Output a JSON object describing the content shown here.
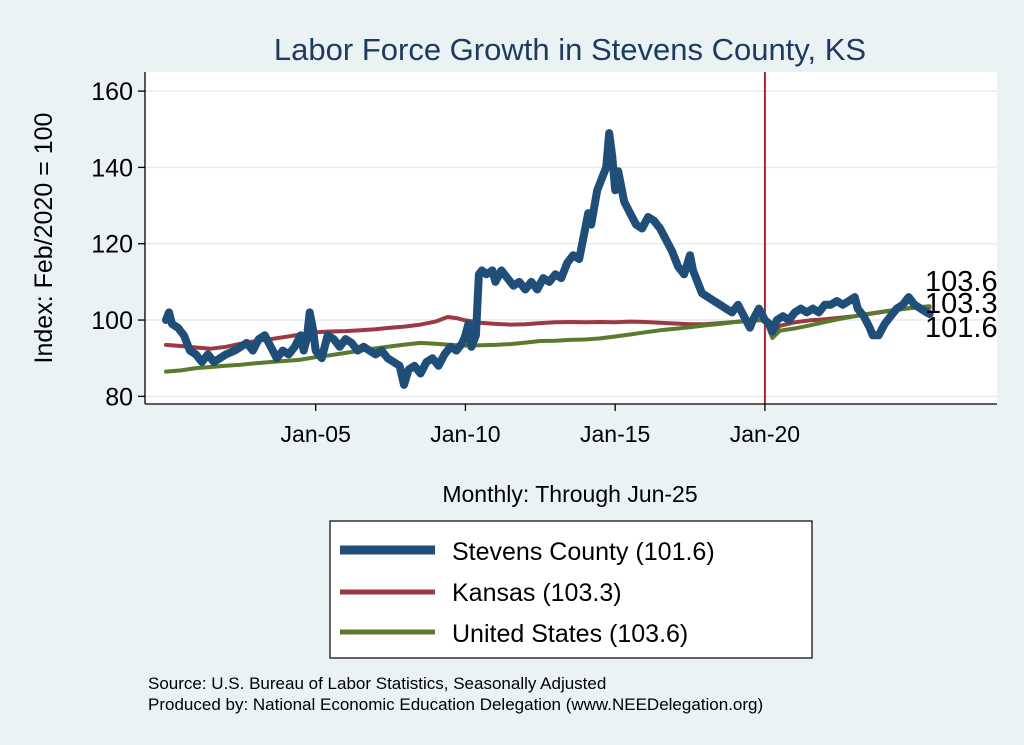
{
  "colors": {
    "page_bg": "#eaf2f3",
    "plot_bg": "#ffffff",
    "grid": "#e3ecee",
    "title": "#1e3a5f",
    "stevens": "#1f4e79",
    "kansas": "#9c3a43",
    "us": "#5a7a2e",
    "vline": "#b22234",
    "text": "#000000"
  },
  "chart_data": {
    "type": "line",
    "title": "Labor Force Growth in Stevens  County, KS",
    "xlabel": "Monthly: Through Jun-25",
    "ylabel": "Index: Feb/2020 = 100",
    "ylim": [
      78,
      165
    ],
    "xlim": [
      1999.3,
      2027.75
    ],
    "y_ticks": [
      80,
      100,
      120,
      140,
      160
    ],
    "x_ticks": [
      {
        "label": "Jan-05",
        "x": 2005.0
      },
      {
        "label": "Jan-10",
        "x": 2010.0
      },
      {
        "label": "Jan-15",
        "x": 2015.0
      },
      {
        "label": "Jan-20",
        "x": 2020.0
      }
    ],
    "vline": {
      "x": 2020.0
    },
    "grid": true,
    "series": [
      {
        "name": "Stevens  County (101.6)",
        "key": "stevens",
        "color": "#1f4e79",
        "end_label": "101.6",
        "points": [
          [
            2000.0,
            100
          ],
          [
            2000.1,
            102
          ],
          [
            2000.2,
            99
          ],
          [
            2000.4,
            98
          ],
          [
            2000.6,
            96
          ],
          [
            2000.8,
            92
          ],
          [
            2001.0,
            91
          ],
          [
            2001.2,
            89
          ],
          [
            2001.4,
            91
          ],
          [
            2001.6,
            89
          ],
          [
            2001.8,
            90
          ],
          [
            2002.0,
            91
          ],
          [
            2002.3,
            92
          ],
          [
            2002.5,
            93
          ],
          [
            2002.7,
            94
          ],
          [
            2002.9,
            92
          ],
          [
            2003.1,
            95
          ],
          [
            2003.3,
            96
          ],
          [
            2003.5,
            93
          ],
          [
            2003.7,
            90
          ],
          [
            2003.9,
            92
          ],
          [
            2004.1,
            91
          ],
          [
            2004.3,
            93
          ],
          [
            2004.5,
            96
          ],
          [
            2004.6,
            92
          ],
          [
            2004.7,
            95
          ],
          [
            2004.8,
            102
          ],
          [
            2004.9,
            98
          ],
          [
            2005.0,
            92
          ],
          [
            2005.2,
            90
          ],
          [
            2005.4,
            96
          ],
          [
            2005.6,
            95
          ],
          [
            2005.8,
            93
          ],
          [
            2006.0,
            95
          ],
          [
            2006.2,
            94
          ],
          [
            2006.4,
            92
          ],
          [
            2006.6,
            93
          ],
          [
            2006.8,
            92
          ],
          [
            2007.0,
            91
          ],
          [
            2007.2,
            92
          ],
          [
            2007.4,
            90
          ],
          [
            2007.6,
            89
          ],
          [
            2007.8,
            88
          ],
          [
            2007.95,
            83
          ],
          [
            2008.1,
            87
          ],
          [
            2008.3,
            88
          ],
          [
            2008.5,
            86
          ],
          [
            2008.7,
            89
          ],
          [
            2008.9,
            90
          ],
          [
            2009.1,
            88
          ],
          [
            2009.3,
            91
          ],
          [
            2009.5,
            93
          ],
          [
            2009.7,
            92
          ],
          [
            2009.9,
            94
          ],
          [
            2010.0,
            96
          ],
          [
            2010.1,
            99
          ],
          [
            2010.2,
            93
          ],
          [
            2010.35,
            96
          ],
          [
            2010.45,
            112
          ],
          [
            2010.55,
            113
          ],
          [
            2010.7,
            112
          ],
          [
            2010.9,
            113
          ],
          [
            2011.0,
            110
          ],
          [
            2011.2,
            113
          ],
          [
            2011.4,
            111
          ],
          [
            2011.6,
            109
          ],
          [
            2011.8,
            110
          ],
          [
            2012.0,
            108
          ],
          [
            2012.2,
            110
          ],
          [
            2012.4,
            108
          ],
          [
            2012.6,
            111
          ],
          [
            2012.8,
            110
          ],
          [
            2013.0,
            112
          ],
          [
            2013.2,
            111
          ],
          [
            2013.4,
            115
          ],
          [
            2013.6,
            117
          ],
          [
            2013.8,
            116
          ],
          [
            2014.0,
            124
          ],
          [
            2014.1,
            128
          ],
          [
            2014.2,
            125
          ],
          [
            2014.4,
            134
          ],
          [
            2014.6,
            138
          ],
          [
            2014.7,
            140
          ],
          [
            2014.8,
            149
          ],
          [
            2014.9,
            143
          ],
          [
            2015.0,
            134
          ],
          [
            2015.1,
            139
          ],
          [
            2015.3,
            131
          ],
          [
            2015.5,
            128
          ],
          [
            2015.7,
            125
          ],
          [
            2015.9,
            124
          ],
          [
            2016.1,
            127
          ],
          [
            2016.3,
            126
          ],
          [
            2016.5,
            124
          ],
          [
            2016.7,
            121
          ],
          [
            2016.9,
            118
          ],
          [
            2017.1,
            114
          ],
          [
            2017.3,
            112
          ],
          [
            2017.5,
            117
          ],
          [
            2017.6,
            113
          ],
          [
            2017.7,
            111
          ],
          [
            2017.9,
            107
          ],
          [
            2018.1,
            106
          ],
          [
            2018.3,
            105
          ],
          [
            2018.5,
            104
          ],
          [
            2018.7,
            103
          ],
          [
            2018.9,
            102
          ],
          [
            2019.1,
            104
          ],
          [
            2019.3,
            101
          ],
          [
            2019.5,
            98
          ],
          [
            2019.6,
            100
          ],
          [
            2019.8,
            103
          ],
          [
            2020.0,
            100
          ],
          [
            2020.15,
            99
          ],
          [
            2020.25,
            97
          ],
          [
            2020.4,
            100
          ],
          [
            2020.6,
            101
          ],
          [
            2020.8,
            100
          ],
          [
            2021.0,
            102
          ],
          [
            2021.2,
            103
          ],
          [
            2021.4,
            102
          ],
          [
            2021.6,
            103
          ],
          [
            2021.8,
            102
          ],
          [
            2022.0,
            104
          ],
          [
            2022.2,
            104
          ],
          [
            2022.4,
            105
          ],
          [
            2022.6,
            104
          ],
          [
            2022.8,
            105
          ],
          [
            2023.0,
            106
          ],
          [
            2023.1,
            103
          ],
          [
            2023.3,
            101
          ],
          [
            2023.5,
            98
          ],
          [
            2023.6,
            96
          ],
          [
            2023.8,
            96
          ],
          [
            2024.0,
            99
          ],
          [
            2024.2,
            101
          ],
          [
            2024.4,
            103
          ],
          [
            2024.6,
            104
          ],
          [
            2024.8,
            106
          ],
          [
            2025.0,
            104
          ],
          [
            2025.2,
            103
          ],
          [
            2025.4,
            102
          ],
          [
            2025.5,
            101.6
          ]
        ]
      },
      {
        "name": "Kansas (103.3)",
        "key": "kansas",
        "color": "#9c3a43",
        "end_label": "103.3",
        "points": [
          [
            2000.0,
            93.5
          ],
          [
            2000.5,
            93.2
          ],
          [
            2001.0,
            92.8
          ],
          [
            2001.5,
            92.5
          ],
          [
            2002.0,
            93.0
          ],
          [
            2002.5,
            93.8
          ],
          [
            2003.0,
            94.5
          ],
          [
            2003.5,
            95.0
          ],
          [
            2004.0,
            95.6
          ],
          [
            2004.5,
            96.2
          ],
          [
            2005.0,
            96.8
          ],
          [
            2005.5,
            97.0
          ],
          [
            2006.0,
            97.1
          ],
          [
            2006.5,
            97.3
          ],
          [
            2007.0,
            97.6
          ],
          [
            2007.5,
            98.0
          ],
          [
            2008.0,
            98.3
          ],
          [
            2008.5,
            98.8
          ],
          [
            2009.0,
            99.6
          ],
          [
            2009.4,
            100.8
          ],
          [
            2009.7,
            100.5
          ],
          [
            2010.0,
            99.9
          ],
          [
            2010.5,
            99.3
          ],
          [
            2011.0,
            99.0
          ],
          [
            2011.5,
            98.8
          ],
          [
            2012.0,
            98.9
          ],
          [
            2012.5,
            99.2
          ],
          [
            2013.0,
            99.4
          ],
          [
            2013.5,
            99.5
          ],
          [
            2014.0,
            99.4
          ],
          [
            2014.5,
            99.5
          ],
          [
            2015.0,
            99.4
          ],
          [
            2015.5,
            99.6
          ],
          [
            2016.0,
            99.5
          ],
          [
            2016.5,
            99.3
          ],
          [
            2017.0,
            99.1
          ],
          [
            2017.5,
            98.9
          ],
          [
            2018.0,
            98.9
          ],
          [
            2018.5,
            99.2
          ],
          [
            2019.0,
            99.5
          ],
          [
            2019.5,
            99.8
          ],
          [
            2020.0,
            100
          ],
          [
            2020.25,
            96.5
          ],
          [
            2020.5,
            98.5
          ],
          [
            2021.0,
            99.4
          ],
          [
            2021.5,
            99.9
          ],
          [
            2022.0,
            100.2
          ],
          [
            2022.5,
            100.6
          ],
          [
            2023.0,
            101.0
          ],
          [
            2023.5,
            101.6
          ],
          [
            2024.0,
            102.2
          ],
          [
            2024.5,
            102.8
          ],
          [
            2025.0,
            103.3
          ],
          [
            2025.5,
            103.3
          ]
        ]
      },
      {
        "name": "United States (103.6)",
        "key": "us",
        "color": "#5a7a2e",
        "end_label": "103.6",
        "points": [
          [
            2000.0,
            86.5
          ],
          [
            2000.5,
            86.8
          ],
          [
            2001.0,
            87.4
          ],
          [
            2001.5,
            87.7
          ],
          [
            2002.0,
            88.0
          ],
          [
            2002.5,
            88.3
          ],
          [
            2003.0,
            88.7
          ],
          [
            2003.5,
            89.0
          ],
          [
            2004.0,
            89.3
          ],
          [
            2004.5,
            89.6
          ],
          [
            2005.0,
            90.3
          ],
          [
            2005.5,
            90.8
          ],
          [
            2006.0,
            91.4
          ],
          [
            2006.5,
            92.0
          ],
          [
            2007.0,
            92.6
          ],
          [
            2007.5,
            93.1
          ],
          [
            2008.0,
            93.6
          ],
          [
            2008.5,
            94.0
          ],
          [
            2009.0,
            93.8
          ],
          [
            2009.5,
            93.5
          ],
          [
            2010.0,
            93.3
          ],
          [
            2010.5,
            93.4
          ],
          [
            2011.0,
            93.5
          ],
          [
            2011.5,
            93.7
          ],
          [
            2012.0,
            94.1
          ],
          [
            2012.5,
            94.5
          ],
          [
            2013.0,
            94.6
          ],
          [
            2013.5,
            94.8
          ],
          [
            2014.0,
            94.9
          ],
          [
            2014.5,
            95.2
          ],
          [
            2015.0,
            95.7
          ],
          [
            2015.5,
            96.2
          ],
          [
            2016.0,
            96.8
          ],
          [
            2016.5,
            97.3
          ],
          [
            2017.0,
            97.7
          ],
          [
            2017.5,
            98.1
          ],
          [
            2018.0,
            98.6
          ],
          [
            2018.5,
            99.0
          ],
          [
            2019.0,
            99.5
          ],
          [
            2019.5,
            99.8
          ],
          [
            2020.0,
            100
          ],
          [
            2020.25,
            95.3
          ],
          [
            2020.5,
            97.2
          ],
          [
            2021.0,
            97.8
          ],
          [
            2021.5,
            98.6
          ],
          [
            2022.0,
            99.5
          ],
          [
            2022.5,
            100.3
          ],
          [
            2023.0,
            101.0
          ],
          [
            2023.5,
            101.7
          ],
          [
            2024.0,
            102.3
          ],
          [
            2024.5,
            102.8
          ],
          [
            2025.0,
            103.3
          ],
          [
            2025.5,
            103.6
          ]
        ]
      }
    ]
  },
  "legend": {
    "items": [
      {
        "key": "stevens",
        "label": "Stevens  County (101.6)"
      },
      {
        "key": "kansas",
        "label": "Kansas (103.3)"
      },
      {
        "key": "us",
        "label": "United States (103.6)"
      }
    ]
  },
  "footer": {
    "source": "Source: U.S. Bureau of Labor Statistics, Seasonally Adjusted",
    "produced_by": "Produced by: National Economic Education Delegation (www.NEEDelegation.org)"
  }
}
